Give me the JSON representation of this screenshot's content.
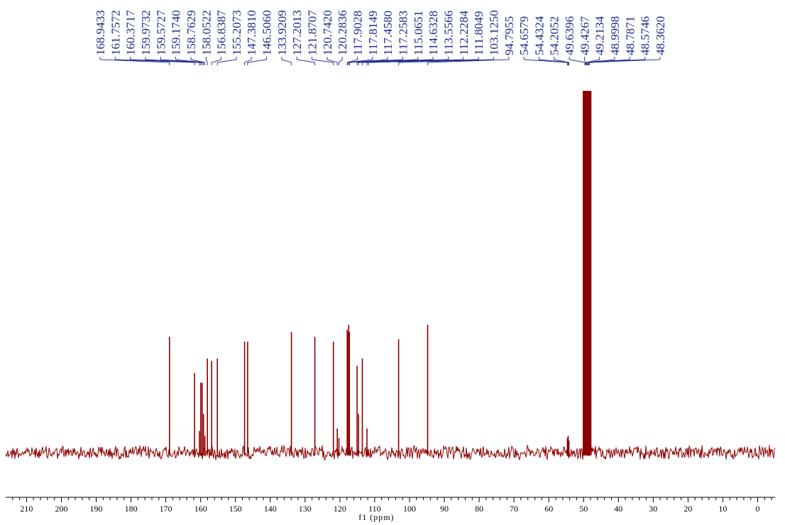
{
  "chart_data": {
    "type": "line",
    "title": "",
    "xlabel": "f1 (ppm)",
    "ylabel": "",
    "xlim": [
      216,
      -5
    ],
    "x_reversed": true,
    "x_ticks": [
      210,
      200,
      190,
      180,
      170,
      160,
      150,
      140,
      130,
      120,
      110,
      100,
      90,
      80,
      70,
      60,
      50,
      40,
      30,
      20,
      10,
      0
    ],
    "grid": false,
    "legend": "none",
    "line_color": "#8b0000",
    "label_color": "#1f2a8c",
    "peak_labels": [
      "168.9433",
      "161.7572",
      "160.3717",
      "159.9732",
      "159.5727",
      "159.1740",
      "158.7629",
      "158.0522",
      "156.8387",
      "155.2073",
      "147.3810",
      "146.5060",
      "133.9209",
      "127.2013",
      "121.8707",
      "120.7420",
      "120.2836",
      "117.9028",
      "117.8149",
      "117.4580",
      "117.2583",
      "115.0651",
      "114.6328",
      "113.5566",
      "112.2284",
      "111.8049",
      "103.1250",
      "94.7955",
      "54.6579",
      "54.4324",
      "54.2052",
      "49.6396",
      "49.4267",
      "49.2134",
      "48.9998",
      "48.7871",
      "48.5746",
      "48.3620"
    ],
    "peaks": [
      {
        "ppm": 168.9433,
        "h": 0.48
      },
      {
        "ppm": 161.7572,
        "h": 0.33
      },
      {
        "ppm": 160.3717,
        "h": 0.09
      },
      {
        "ppm": 159.9732,
        "h": 0.29
      },
      {
        "ppm": 159.5727,
        "h": 0.29
      },
      {
        "ppm": 159.174,
        "h": 0.16
      },
      {
        "ppm": 158.7629,
        "h": 0.07
      },
      {
        "ppm": 158.0522,
        "h": 0.39
      },
      {
        "ppm": 156.8387,
        "h": 0.38
      },
      {
        "ppm": 155.2073,
        "h": 0.39
      },
      {
        "ppm": 147.381,
        "h": 0.46
      },
      {
        "ppm": 146.506,
        "h": 0.46
      },
      {
        "ppm": 133.9209,
        "h": 0.5
      },
      {
        "ppm": 127.2013,
        "h": 0.48
      },
      {
        "ppm": 121.8707,
        "h": 0.46
      },
      {
        "ppm": 120.742,
        "h": 0.1
      },
      {
        "ppm": 120.2836,
        "h": 0.06
      },
      {
        "ppm": 117.9028,
        "h": 0.51
      },
      {
        "ppm": 117.8149,
        "h": 0.5
      },
      {
        "ppm": 117.458,
        "h": 0.53
      },
      {
        "ppm": 117.2583,
        "h": 0.5
      },
      {
        "ppm": 115.0651,
        "h": 0.36
      },
      {
        "ppm": 114.6328,
        "h": 0.16
      },
      {
        "ppm": 113.5566,
        "h": 0.39
      },
      {
        "ppm": 112.2284,
        "h": 0.1
      },
      {
        "ppm": 111.8049,
        "h": 0.01
      },
      {
        "ppm": 103.125,
        "h": 0.47
      },
      {
        "ppm": 94.7955,
        "h": 0.53
      },
      {
        "ppm": 54.6579,
        "h": 0.06
      },
      {
        "ppm": 54.4324,
        "h": 0.07
      },
      {
        "ppm": 54.2052,
        "h": 0.05
      },
      {
        "ppm": 49.6396,
        "h": 1.5
      },
      {
        "ppm": 49.4267,
        "h": 1.5
      },
      {
        "ppm": 49.2134,
        "h": 1.5
      },
      {
        "ppm": 48.9998,
        "h": 1.5
      },
      {
        "ppm": 48.7871,
        "h": 1.5
      },
      {
        "ppm": 48.5746,
        "h": 1.5
      },
      {
        "ppm": 48.362,
        "h": 1.5
      }
    ],
    "label_connectors": [
      {
        "label": "168.9433",
        "ppm": 168.9433
      },
      {
        "label": "161.7572",
        "ppm": 161.7572
      },
      {
        "label": "160.3717",
        "ppm": 160.3717
      },
      {
        "label": "159.9732",
        "ppm": 159.9732
      },
      {
        "label": "159.5727",
        "ppm": 159.5727
      },
      {
        "label": "159.1740",
        "ppm": 159.174
      },
      {
        "label": "158.7629",
        "ppm": 158.7629
      },
      {
        "label": "158.0522",
        "ppm": 158.0522
      },
      {
        "label": "156.8387",
        "ppm": 156.8387
      },
      {
        "label": "155.2073",
        "ppm": 155.2073
      },
      {
        "label": "147.3810",
        "ppm": 147.381
      },
      {
        "label": "146.5060",
        "ppm": 146.506
      },
      {
        "label": "133.9209",
        "ppm": 133.9209
      },
      {
        "label": "127.2013",
        "ppm": 127.2013
      },
      {
        "label": "121.8707",
        "ppm": 121.8707
      },
      {
        "label": "120.7420",
        "ppm": 120.742
      },
      {
        "label": "120.2836",
        "ppm": 120.2836
      },
      {
        "label": "117.9028",
        "ppm": 117.9028
      },
      {
        "label": "117.8149",
        "ppm": 117.8149
      },
      {
        "label": "117.4580",
        "ppm": 117.458
      },
      {
        "label": "117.2583",
        "ppm": 117.2583
      },
      {
        "label": "115.0651",
        "ppm": 115.0651
      },
      {
        "label": "114.6328",
        "ppm": 114.6328
      },
      {
        "label": "113.5566",
        "ppm": 113.5566
      },
      {
        "label": "112.2284",
        "ppm": 112.2284
      },
      {
        "label": "111.8049",
        "ppm": 111.8049
      },
      {
        "label": "103.1250",
        "ppm": 103.125
      },
      {
        "label": "94.7955",
        "ppm": 94.7955
      },
      {
        "label": "54.6579",
        "ppm": 54.6579
      },
      {
        "label": "54.4324",
        "ppm": 54.4324
      },
      {
        "label": "54.2052",
        "ppm": 54.2052
      },
      {
        "label": "49.6396",
        "ppm": 49.6396
      },
      {
        "label": "49.4267",
        "ppm": 49.4267
      },
      {
        "label": "49.2134",
        "ppm": 49.2134
      },
      {
        "label": "48.9998",
        "ppm": 48.9998
      },
      {
        "label": "48.7871",
        "ppm": 48.7871
      },
      {
        "label": "48.5746",
        "ppm": 48.5746
      },
      {
        "label": "48.3620",
        "ppm": 48.362
      }
    ]
  }
}
